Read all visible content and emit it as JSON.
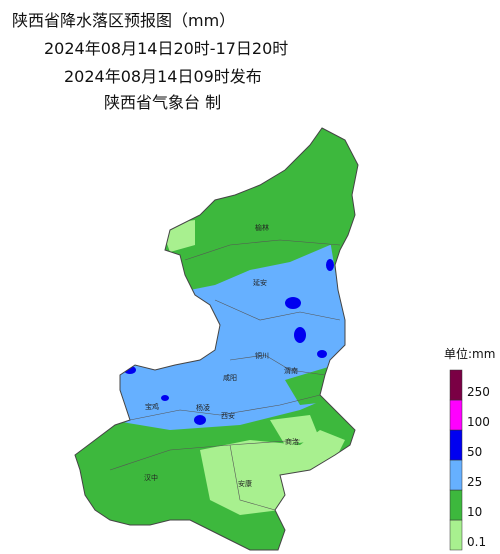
{
  "header": {
    "title": "陕西省降水落区预报图（mm）",
    "period": "2024年08月14日20时-17日20时",
    "issued": "2024年08月14日09时发布",
    "issuer": "陕西省气象台 制"
  },
  "cities": [
    "榆林",
    "延安",
    "铜川",
    "渭南",
    "咸阳",
    "宝鸡",
    "杨凌",
    "西安",
    "商洛",
    "汉中",
    "安康"
  ],
  "legend": {
    "unit": "单位:mm",
    "levels": [
      {
        "value": 0.1,
        "color": "#a8f08f"
      },
      {
        "value": 10,
        "color": "#3db83d"
      },
      {
        "value": 25,
        "color": "#66b0ff"
      },
      {
        "value": 50,
        "color": "#0000f0"
      },
      {
        "value": 100,
        "color": "#ff00ff"
      },
      {
        "value": 250,
        "color": "#7a0044"
      }
    ]
  }
}
